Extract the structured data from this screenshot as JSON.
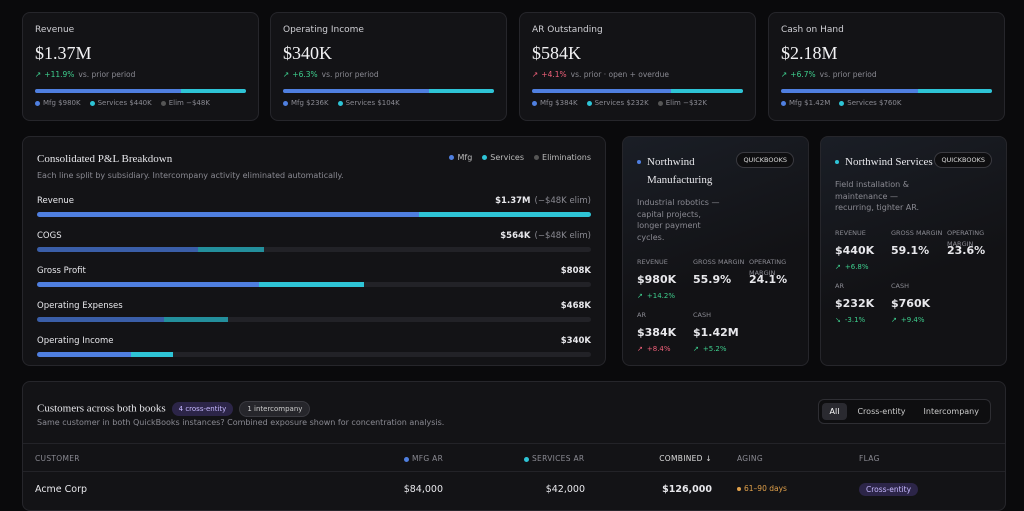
{
  "kpis": [
    {
      "label": "Revenue",
      "value": "$1.37M",
      "delta": "+11.9%",
      "note": "vs. prior period",
      "legend": [
        "Mfg $980K",
        "Services $440K",
        "Elim −$48K"
      ]
    },
    {
      "label": "Operating Income",
      "value": "$340K",
      "delta": "+6.3%",
      "note": "vs. prior period",
      "legend": [
        "Mfg $236K",
        "Services $104K"
      ]
    },
    {
      "label": "AR Outstanding",
      "value": "$584K",
      "delta": "+4.1%",
      "note": "vs. prior · open + overdue",
      "legend": [
        "Mfg $384K",
        "Services $232K",
        "Elim −$32K"
      ]
    },
    {
      "label": "Cash on Hand",
      "value": "$2.18M",
      "delta": "+6.7%",
      "note": "vs. prior period",
      "legend": [
        "Mfg $1.42M",
        "Services $760K"
      ]
    }
  ],
  "pnl": {
    "title": "Consolidated P&L Breakdown",
    "subtitle": "Each line split by subsidiary. Intercompany activity eliminated automatically.",
    "legend": [
      "Mfg",
      "Services",
      "Eliminations"
    ],
    "rows": [
      {
        "label": "Revenue",
        "value": "$1.37M",
        "elim": "(−$48K elim)"
      },
      {
        "label": "COGS",
        "value": "$564K",
        "elim": "(−$48K elim)"
      },
      {
        "label": "Gross Profit",
        "value": "$808K"
      },
      {
        "label": "Operating Expenses",
        "value": "$468K"
      },
      {
        "label": "Operating Income",
        "value": "$340K"
      }
    ]
  },
  "entities": [
    {
      "name": "Northwind Manufacturing",
      "badge": "QUICKBOOKS",
      "description": "Industrial robotics — capital projects, longer payment cycles.",
      "metrics": [
        {
          "label": "REVENUE",
          "value": "$980K",
          "delta": "+14.2%"
        },
        {
          "label": "GROSS MARGIN",
          "value": "55.9%"
        },
        {
          "label": "OPERATING MARGIN",
          "value": "24.1%"
        },
        {
          "label": "AR",
          "value": "$384K",
          "delta": "+8.4%"
        },
        {
          "label": "CASH",
          "value": "$1.42M",
          "delta": "+5.2%"
        }
      ]
    },
    {
      "name": "Northwind Services",
      "badge": "QUICKBOOKS",
      "description": "Field installation & maintenance — recurring, tighter AR.",
      "metrics": [
        {
          "label": "REVENUE",
          "value": "$440K",
          "delta": "+6.8%"
        },
        {
          "label": "GROSS MARGIN",
          "value": "59.1%"
        },
        {
          "label": "OPERATING MARGIN",
          "value": "23.6%"
        },
        {
          "label": "AR",
          "value": "$232K",
          "delta": "-3.1%"
        },
        {
          "label": "CASH",
          "value": "$760K",
          "delta": "+9.4%"
        }
      ]
    }
  ],
  "customers": {
    "title": "Customers across both books",
    "badges": [
      "4 cross-entity",
      "1 intercompany"
    ],
    "subtitle": "Same customer in both QuickBooks instances? Combined exposure shown for concentration analysis.",
    "filters": [
      "All",
      "Cross-entity",
      "Intercompany"
    ],
    "columns": [
      "CUSTOMER",
      "MFG AR",
      "SERVICES AR",
      "COMBINED ↓",
      "AGING",
      "FLAG"
    ],
    "rows": [
      [
        "Acme Corp",
        "$84,000",
        "$42,000",
        "$126,000",
        "61–90 days",
        "Cross-entity"
      ]
    ]
  }
}
